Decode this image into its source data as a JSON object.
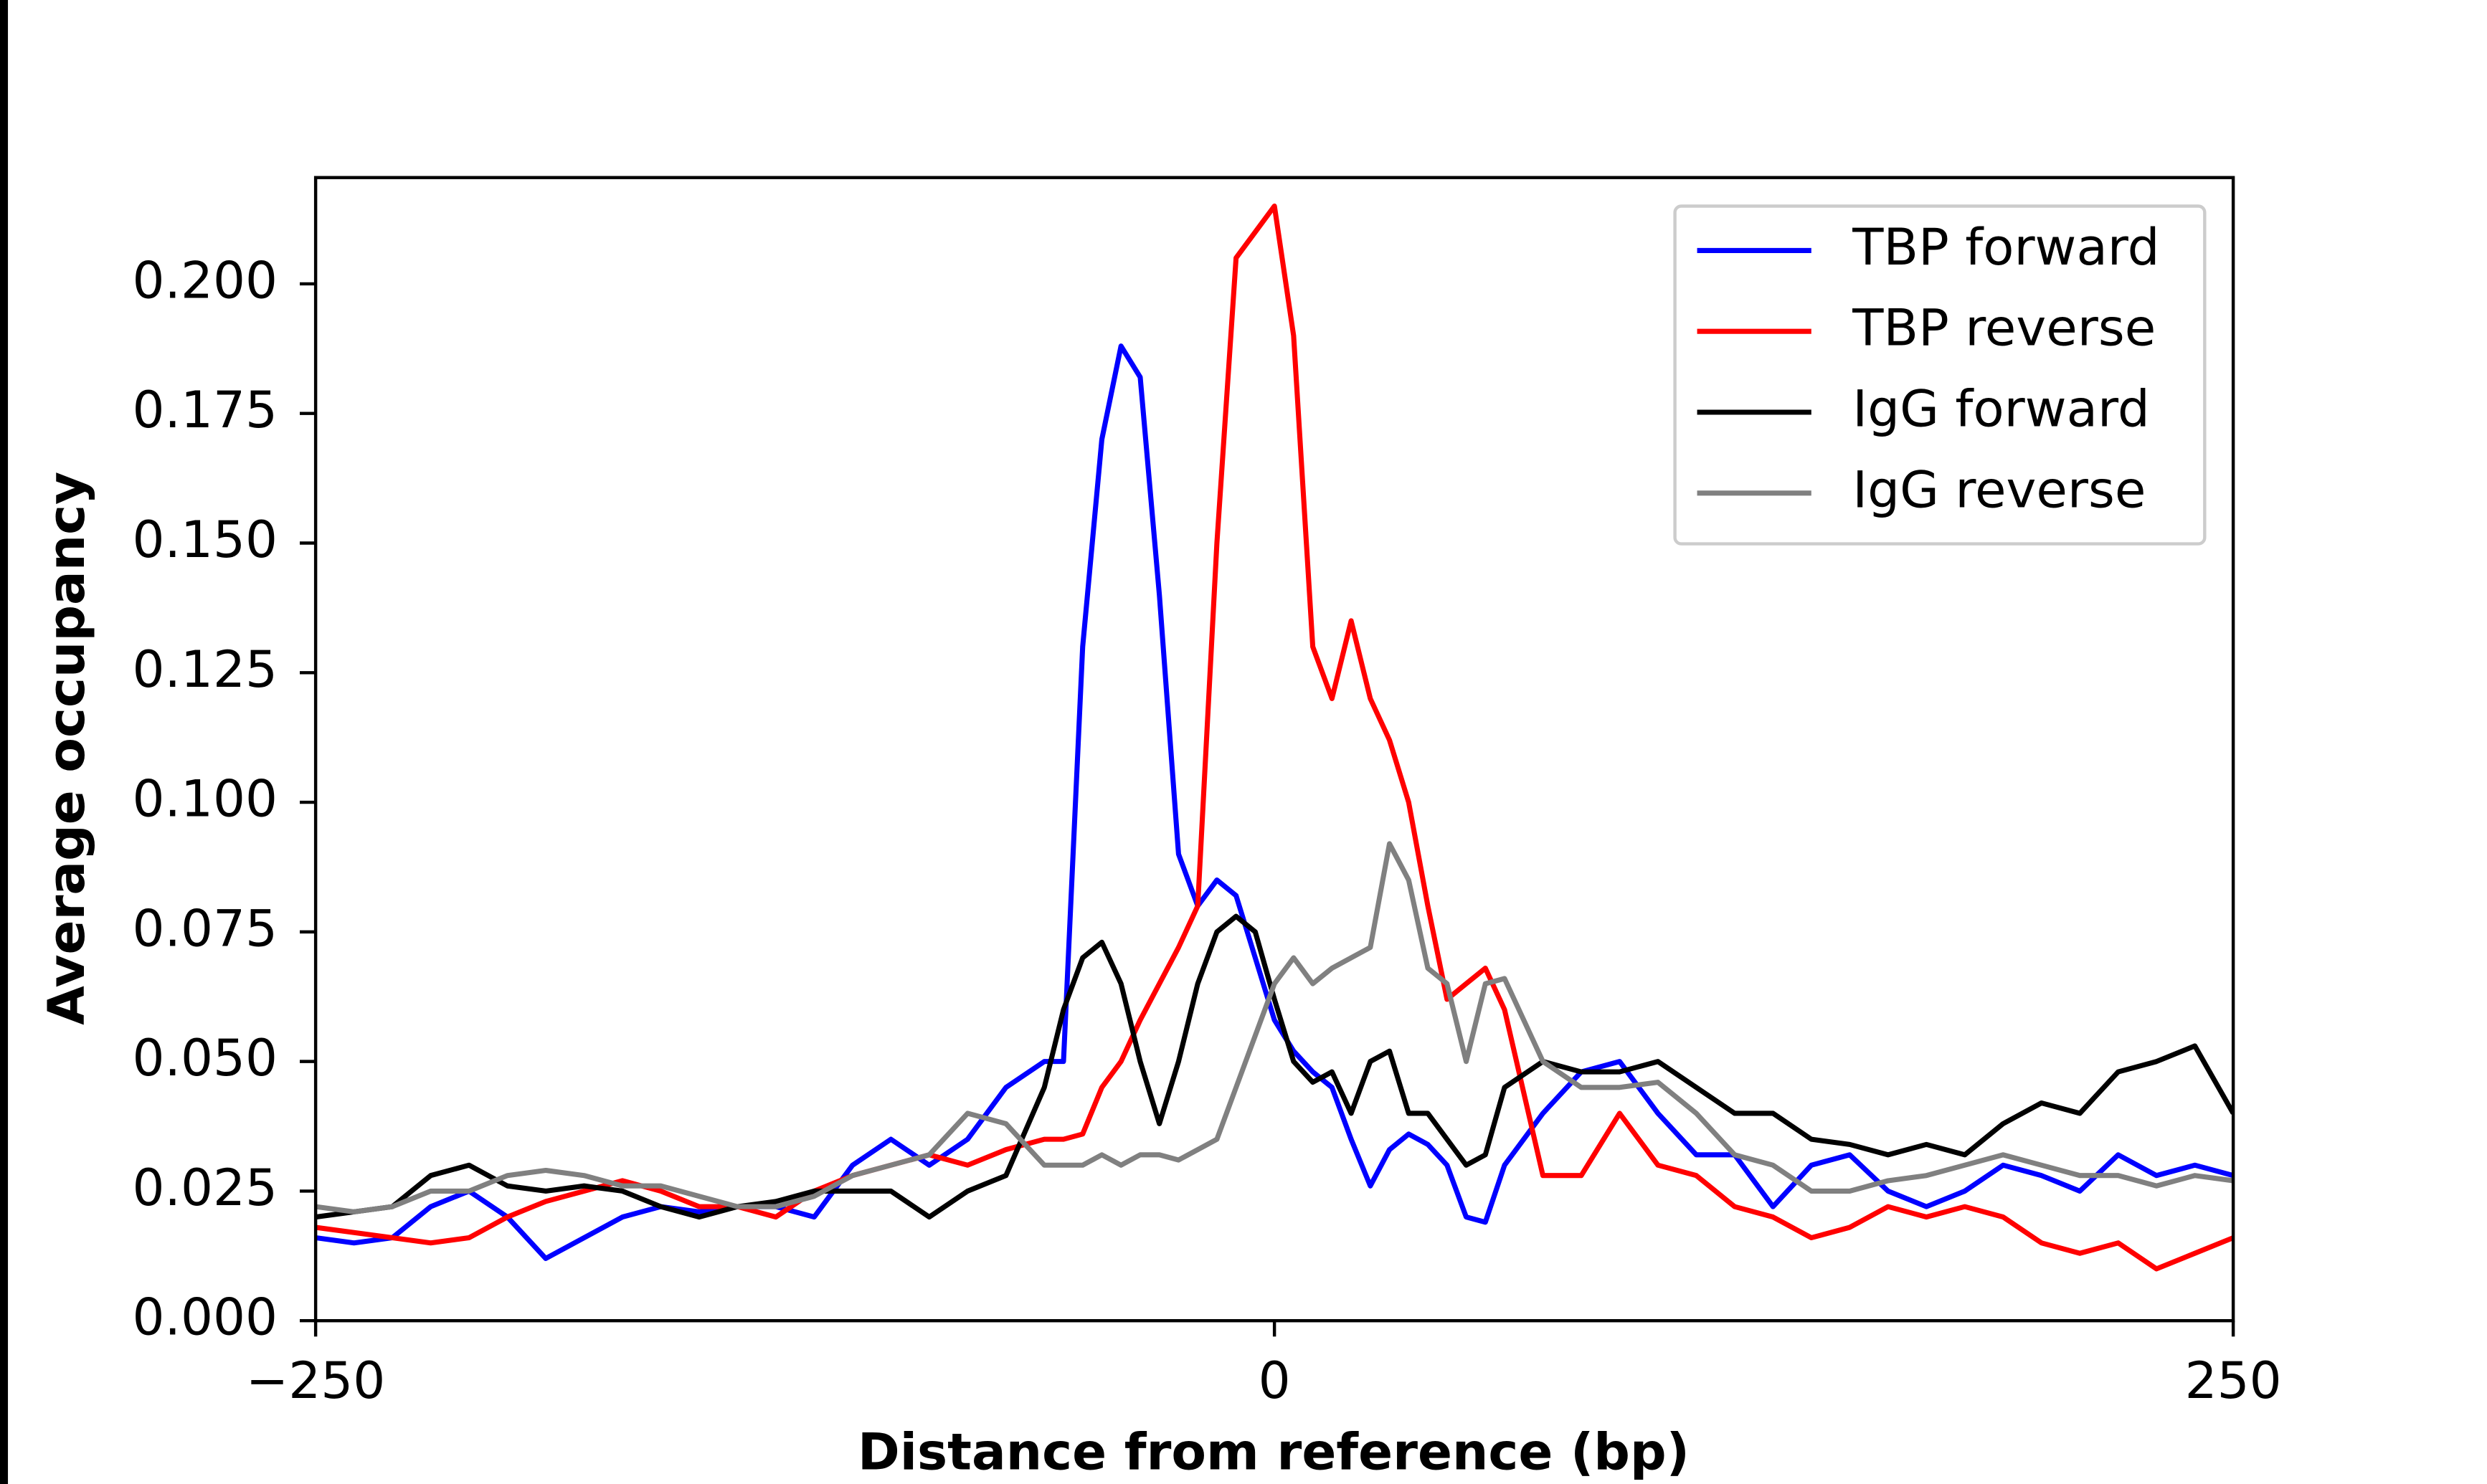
{
  "chart_data": {
    "type": "line",
    "xlabel": "Distance from reference (bp)",
    "ylabel": "Average occupancy",
    "x": [
      -250,
      -240,
      -230,
      -220,
      -210,
      -200,
      -190,
      -180,
      -170,
      -160,
      -150,
      -140,
      -130,
      -120,
      -110,
      -100,
      -90,
      -80,
      -70,
      -60,
      -55,
      -50,
      -45,
      -40,
      -35,
      -30,
      -25,
      -20,
      -15,
      -10,
      -5,
      0,
      5,
      10,
      15,
      20,
      25,
      30,
      35,
      40,
      45,
      50,
      55,
      60,
      70,
      80,
      90,
      100,
      110,
      120,
      130,
      140,
      150,
      160,
      170,
      180,
      190,
      200,
      210,
      220,
      230,
      240,
      250
    ],
    "series": [
      {
        "name": "TBP forward",
        "color": "#0000ff",
        "values": [
          0.016,
          0.015,
          0.016,
          0.022,
          0.025,
          0.02,
          0.012,
          0.016,
          0.02,
          0.022,
          0.021,
          0.022,
          0.022,
          0.02,
          0.03,
          0.035,
          0.03,
          0.035,
          0.045,
          0.05,
          0.05,
          0.13,
          0.17,
          0.188,
          0.182,
          0.14,
          0.09,
          0.08,
          0.085,
          0.082,
          0.07,
          0.058,
          0.052,
          0.048,
          0.045,
          0.035,
          0.026,
          0.033,
          0.036,
          0.034,
          0.03,
          0.02,
          0.019,
          0.03,
          0.04,
          0.048,
          0.05,
          0.04,
          0.032,
          0.032,
          0.022,
          0.03,
          0.032,
          0.025,
          0.022,
          0.025,
          0.03,
          0.028,
          0.025,
          0.032,
          0.028,
          0.03,
          0.028
        ]
      },
      {
        "name": "TBP reverse",
        "color": "#ff0000",
        "values": [
          0.018,
          0.017,
          0.016,
          0.015,
          0.016,
          0.02,
          0.023,
          0.025,
          0.027,
          0.025,
          0.022,
          0.022,
          0.02,
          0.025,
          0.028,
          0.03,
          0.032,
          0.03,
          0.033,
          0.035,
          0.035,
          0.036,
          0.045,
          0.05,
          0.058,
          0.065,
          0.072,
          0.08,
          0.15,
          0.205,
          0.21,
          0.215,
          0.19,
          0.13,
          0.12,
          0.135,
          0.12,
          0.112,
          0.1,
          0.08,
          0.062,
          0.065,
          0.068,
          0.06,
          0.028,
          0.028,
          0.04,
          0.03,
          0.028,
          0.022,
          0.02,
          0.016,
          0.018,
          0.022,
          0.02,
          0.022,
          0.02,
          0.015,
          0.013,
          0.015,
          0.01,
          0.013,
          0.016
        ]
      },
      {
        "name": "IgG forward",
        "color": "#000000",
        "values": [
          0.02,
          0.021,
          0.022,
          0.028,
          0.03,
          0.026,
          0.025,
          0.026,
          0.025,
          0.022,
          0.02,
          0.022,
          0.023,
          0.025,
          0.025,
          0.025,
          0.02,
          0.025,
          0.028,
          0.045,
          0.06,
          0.07,
          0.073,
          0.065,
          0.05,
          0.038,
          0.05,
          0.065,
          0.075,
          0.078,
          0.075,
          0.062,
          0.05,
          0.046,
          0.048,
          0.04,
          0.05,
          0.052,
          0.04,
          0.04,
          0.035,
          0.03,
          0.032,
          0.045,
          0.05,
          0.048,
          0.048,
          0.05,
          0.045,
          0.04,
          0.04,
          0.035,
          0.034,
          0.032,
          0.034,
          0.032,
          0.038,
          0.042,
          0.04,
          0.048,
          0.05,
          0.053,
          0.04
        ]
      },
      {
        "name": "IgG reverse",
        "color": "#808080",
        "values": [
          0.022,
          0.021,
          0.022,
          0.025,
          0.025,
          0.028,
          0.029,
          0.028,
          0.026,
          0.026,
          0.024,
          0.022,
          0.022,
          0.024,
          0.028,
          0.03,
          0.032,
          0.04,
          0.038,
          0.03,
          0.03,
          0.03,
          0.032,
          0.03,
          0.032,
          0.032,
          0.031,
          0.033,
          0.035,
          0.045,
          0.055,
          0.065,
          0.07,
          0.065,
          0.068,
          0.07,
          0.072,
          0.092,
          0.085,
          0.068,
          0.065,
          0.05,
          0.065,
          0.066,
          0.05,
          0.045,
          0.045,
          0.046,
          0.04,
          0.032,
          0.03,
          0.025,
          0.025,
          0.027,
          0.028,
          0.03,
          0.032,
          0.03,
          0.028,
          0.028,
          0.026,
          0.028,
          0.027
        ]
      }
    ],
    "xlim": [
      -250,
      250
    ],
    "xticks": [
      {
        "value": -250,
        "label": "−250"
      },
      0,
      250
    ],
    "ylim": [
      0,
      0.2205
    ],
    "yticks": [
      {
        "value": 0,
        "label": "0.000"
      },
      {
        "value": 0.025,
        "label": "0.025"
      },
      {
        "value": 0.05,
        "label": "0.050"
      },
      {
        "value": 0.075,
        "label": "0.075"
      },
      {
        "value": 0.1,
        "label": "0.100"
      },
      {
        "value": 0.125,
        "label": "0.125"
      },
      {
        "value": 0.15,
        "label": "0.150"
      },
      {
        "value": 0.175,
        "label": "0.175"
      },
      {
        "value": 0.2,
        "label": "0.200"
      }
    ],
    "grid": false,
    "legend": "upper right"
  }
}
